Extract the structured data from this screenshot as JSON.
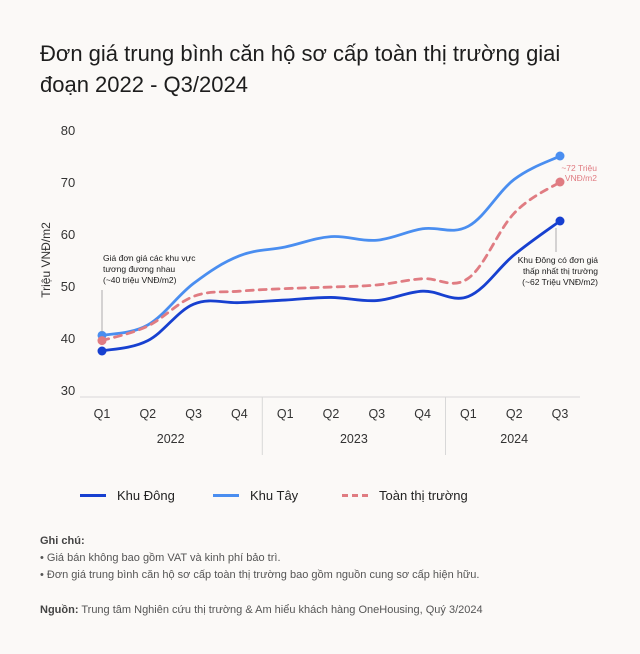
{
  "title": "Đơn giá trung bình căn hộ sơ cấp toàn thị trường giai đoạn 2022 - Q3/2024",
  "chart_data": {
    "type": "line",
    "ylabel": "Triệu VNĐ/m2",
    "ylim": [
      30,
      80
    ],
    "yticks": [
      30,
      40,
      50,
      60,
      70,
      80
    ],
    "grid": false,
    "legend_position": "bottom",
    "categories": [
      "Q1",
      "Q2",
      "Q3",
      "Q4",
      "Q1",
      "Q2",
      "Q3",
      "Q4",
      "Q1",
      "Q2",
      "Q3"
    ],
    "groups": [
      {
        "label": "2022",
        "count": 4
      },
      {
        "label": "2023",
        "count": 4
      },
      {
        "label": "2024",
        "count": 3
      }
    ],
    "series": [
      {
        "name": "Khu Đông",
        "color": "#1740d0",
        "style": "solid",
        "values": [
          37.5,
          39.5,
          46.5,
          46.8,
          47.3,
          47.8,
          47.2,
          49,
          48,
          56,
          62.5
        ],
        "markers": [
          0,
          10
        ]
      },
      {
        "name": "Khu Tây",
        "color": "#4a8ef0",
        "style": "solid",
        "values": [
          40.5,
          42.5,
          50.5,
          55.8,
          57.5,
          59.5,
          58.8,
          61,
          61.5,
          70.5,
          75
        ],
        "markers": [
          0,
          10
        ]
      },
      {
        "name": "Toàn thị trường",
        "color": "#e07c82",
        "style": "dashed",
        "values": [
          39.5,
          42.3,
          48,
          49,
          49.5,
          49.8,
          50.2,
          51.4,
          51.5,
          64,
          70
        ],
        "markers": [
          0,
          10
        ]
      }
    ],
    "annotations": [
      {
        "text": "Giá đơn giá các khu vực tương đương nhau (~40 triệu VNĐ/m2)",
        "color": "#1a1a1a"
      },
      {
        "text": "~72 Triệu VNĐ/m2",
        "color": "#e07c82"
      },
      {
        "text": "Khu Đông có đơn giá thấp nhất thị trường (~62 Triệu VNĐ/m2)",
        "color": "#1a1a1a"
      }
    ]
  },
  "notes": {
    "title": "Ghi chú:",
    "items": [
      "Giá bán không bao gồm VAT và kinh phí bảo trì.",
      "Đơn giá trung bình căn hộ sơ cấp toàn thị trường bao gồm nguồn cung sơ cấp hiện hữu."
    ]
  },
  "source": {
    "label": "Nguồn:",
    "text": "Trung tâm Nghiên cứu thị trường & Am hiểu khách hàng OneHousing, Quý 3/2024"
  }
}
